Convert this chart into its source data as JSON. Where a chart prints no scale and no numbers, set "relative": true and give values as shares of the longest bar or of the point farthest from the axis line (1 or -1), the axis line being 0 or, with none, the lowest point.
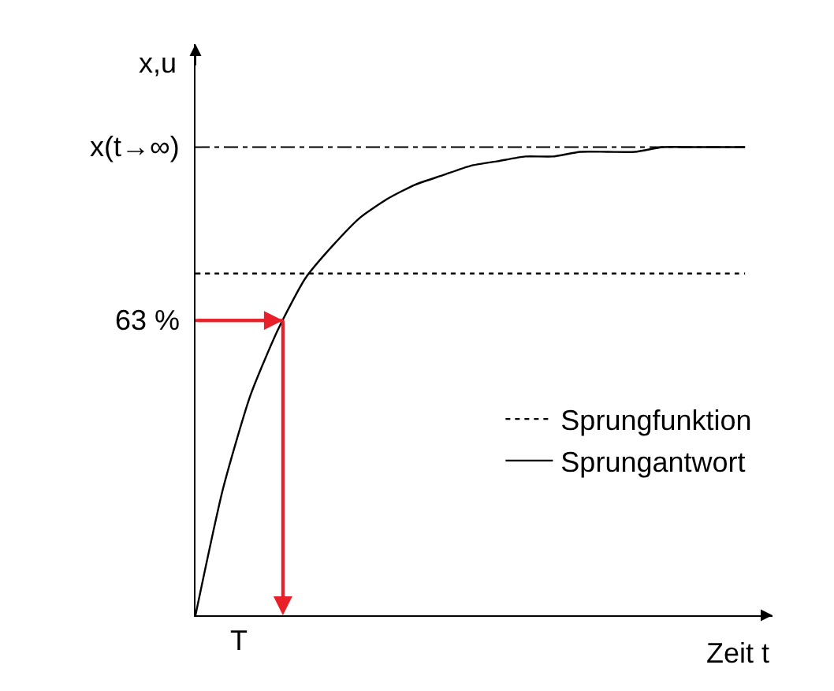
{
  "chart_data": {
    "type": "line",
    "relative": true,
    "xlabel": "Zeit t",
    "ylabel": "x,u",
    "categories": [
      null,
      null,
      null,
      null,
      null,
      null,
      null,
      null,
      null,
      null,
      null,
      null,
      null,
      null,
      null,
      null,
      null,
      null,
      null,
      null,
      null
    ],
    "series": [
      {
        "name": "Sprungfunktion",
        "color": "#000000",
        "line_style": "dotted",
        "values": [
          0.73,
          0.73,
          0.73,
          0.73,
          0.73,
          0.73,
          0.73,
          0.73,
          0.73,
          0.73,
          0.73,
          0.73,
          0.73,
          0.73,
          0.73,
          0.73,
          0.73,
          0.73,
          0.73,
          0.73,
          0.73
        ]
      },
      {
        "name": "Sprungantwort",
        "color": "#000000",
        "line_style": "solid",
        "values": [
          0,
          0.27,
          0.47,
          0.61,
          0.72,
          0.79,
          0.85,
          0.89,
          0.92,
          0.94,
          0.96,
          0.97,
          0.98,
          0.98,
          0.99,
          0.99,
          0.99,
          1,
          1,
          1,
          1
        ]
      }
    ],
    "ref_lines": [
      {
        "axis": "y",
        "value": 1,
        "label": "x(t→∞)",
        "line_style": "dashed",
        "color": "#000000"
      },
      {
        "axis": "y",
        "value": 0.63,
        "label": "63 %",
        "line_style": "solid",
        "color": "#e8202a"
      }
    ],
    "annotations": [
      "T"
    ],
    "legend": "bottom right",
    "marker": "none"
  }
}
